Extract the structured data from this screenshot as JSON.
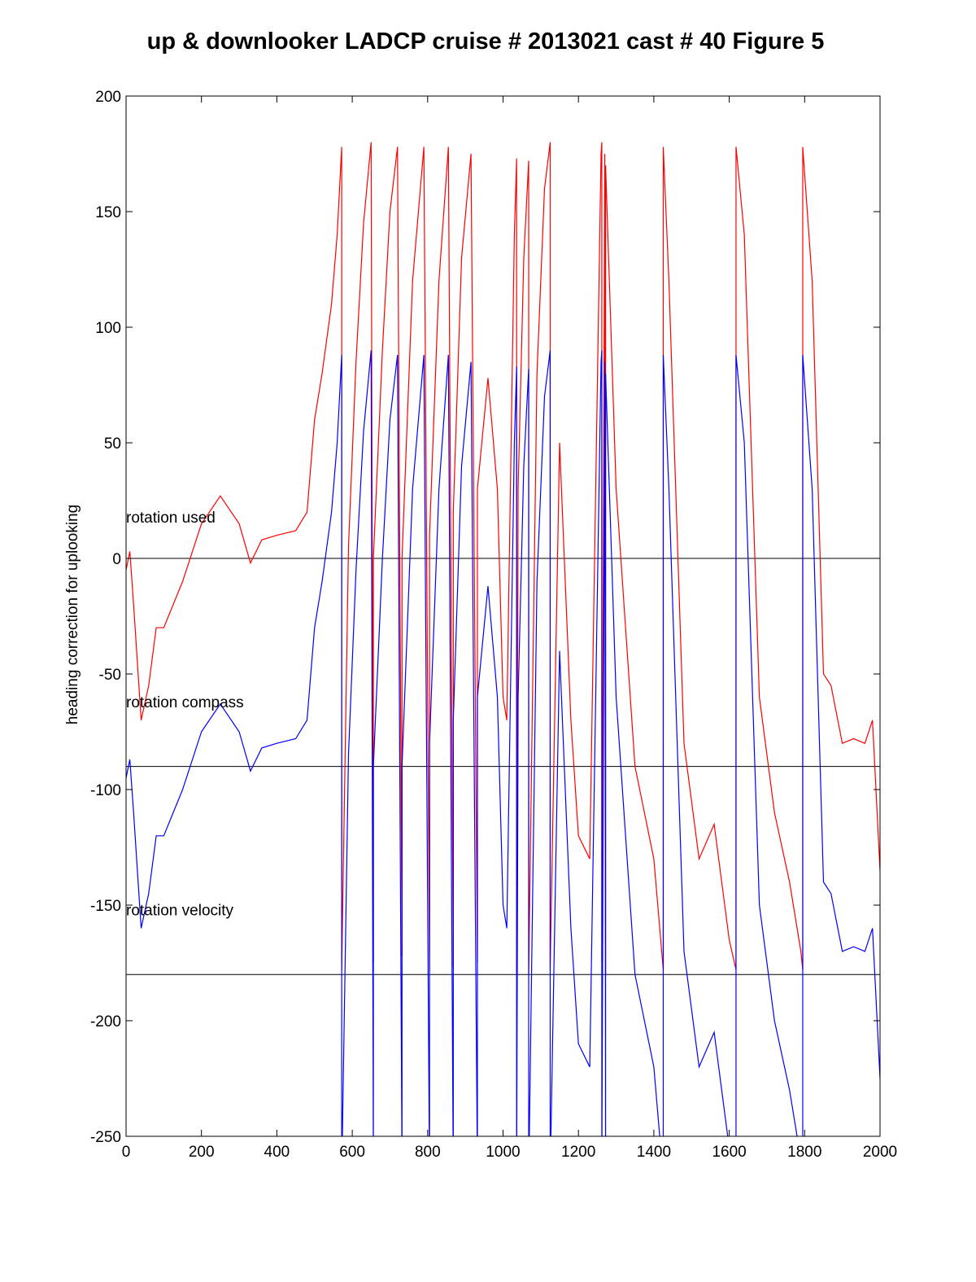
{
  "chart_data": {
    "type": "line",
    "title": "up & downlooker LADCP cruise # 2013021 cast # 40 Figure 5",
    "xlabel": "",
    "ylabel": "heading correction for uplooking",
    "xlim": [
      0,
      2000
    ],
    "ylim": [
      -250,
      200
    ],
    "xticks": [
      0,
      200,
      400,
      600,
      800,
      1000,
      1200,
      1400,
      1600,
      1800,
      2000
    ],
    "yticks": [
      -250,
      -200,
      -150,
      -100,
      -50,
      0,
      50,
      100,
      150,
      200
    ],
    "grid": false,
    "reference_lines": [
      0,
      -90,
      -180
    ],
    "annotations": [
      {
        "text": "rotation used",
        "x": 0,
        "y": 18
      },
      {
        "text": "rotation compass",
        "x": 0,
        "y": -62
      },
      {
        "text": "rotation velocity",
        "x": 0,
        "y": -152
      }
    ],
    "series": [
      {
        "color": "#ff0000",
        "offset": 0,
        "x": [
          0,
          10,
          20,
          40,
          60,
          80,
          100,
          150,
          200,
          250,
          300,
          330,
          360,
          400,
          450,
          480,
          500,
          520,
          545,
          560,
          572,
          572,
          590,
          610,
          630,
          650,
          656,
          656,
          680,
          700,
          720,
          732,
          732,
          760,
          790,
          805,
          805,
          830,
          855,
          868,
          868,
          890,
          915,
          932,
          932,
          960,
          985,
          1000,
          1010,
          1030,
          1036,
          1036,
          1040,
          1055,
          1068,
          1068,
          1090,
          1110,
          1125,
          1125,
          1150,
          1180,
          1200,
          1230,
          1260,
          1262,
          1262,
          1270,
          1272,
          1272,
          1300,
          1350,
          1400,
          1425,
          1425,
          1440,
          1480,
          1520,
          1560,
          1600,
          1618,
          1618,
          1640,
          1680,
          1720,
          1760,
          1790,
          1795,
          1795,
          1820,
          1850,
          1870,
          1900,
          1930,
          1960,
          1980,
          2000
        ],
        "y": [
          -5,
          3,
          -20,
          -70,
          -55,
          -30,
          -30,
          -10,
          15,
          27,
          15,
          -2,
          8,
          10,
          12,
          20,
          60,
          80,
          110,
          140,
          178,
          -178,
          5,
          85,
          145,
          180,
          -175,
          0,
          90,
          150,
          178,
          -172,
          0,
          120,
          178,
          -178,
          10,
          120,
          178,
          -177,
          20,
          130,
          175,
          -175,
          30,
          78,
          30,
          -60,
          -70,
          140,
          173,
          -180,
          30,
          130,
          172,
          -180,
          80,
          160,
          180,
          -178,
          50,
          -70,
          -120,
          -130,
          175,
          180,
          -175,
          175,
          -180,
          170,
          30,
          -90,
          -130,
          -178,
          178,
          120,
          -80,
          -130,
          -115,
          -165,
          -178,
          178,
          140,
          -60,
          -110,
          -140,
          -170,
          -178,
          178,
          120,
          -50,
          -55,
          -80,
          -78,
          -80,
          -70,
          -135
        ]
      },
      {
        "color": "#0000ff",
        "offset": -90,
        "x": [
          0,
          10,
          20,
          40,
          60,
          80,
          100,
          150,
          200,
          250,
          300,
          330,
          360,
          400,
          450,
          480,
          500,
          520,
          545,
          560,
          572,
          572,
          590,
          610,
          630,
          650,
          656,
          656,
          680,
          700,
          720,
          732,
          732,
          760,
          790,
          805,
          805,
          830,
          855,
          868,
          868,
          890,
          915,
          932,
          932,
          960,
          985,
          1000,
          1010,
          1030,
          1036,
          1036,
          1040,
          1055,
          1068,
          1068,
          1090,
          1110,
          1125,
          1125,
          1150,
          1180,
          1200,
          1230,
          1260,
          1262,
          1262,
          1270,
          1272,
          1272,
          1300,
          1350,
          1400,
          1425,
          1425,
          1440,
          1480,
          1520,
          1560,
          1600,
          1618,
          1618,
          1640,
          1680,
          1720,
          1760,
          1790,
          1795,
          1795,
          1820,
          1850,
          1870,
          1900,
          1930,
          1960,
          1980,
          2000
        ],
        "y": [
          -5,
          3,
          -20,
          -70,
          -55,
          -30,
          -30,
          -10,
          15,
          27,
          15,
          -2,
          8,
          10,
          12,
          20,
          60,
          80,
          110,
          140,
          178,
          -178,
          5,
          85,
          145,
          180,
          -175,
          0,
          90,
          150,
          178,
          -172,
          0,
          120,
          178,
          -178,
          10,
          120,
          178,
          -177,
          20,
          130,
          175,
          -175,
          30,
          78,
          30,
          -60,
          -70,
          140,
          173,
          -180,
          30,
          130,
          172,
          -180,
          80,
          160,
          180,
          -178,
          50,
          -70,
          -120,
          -130,
          175,
          180,
          -175,
          175,
          -180,
          170,
          30,
          -90,
          -130,
          -178,
          178,
          120,
          -80,
          -130,
          -115,
          -165,
          -178,
          178,
          140,
          -60,
          -110,
          -140,
          -170,
          -178,
          178,
          120,
          -50,
          -55,
          -80,
          -78,
          -80,
          -70,
          -135
        ]
      }
    ]
  }
}
